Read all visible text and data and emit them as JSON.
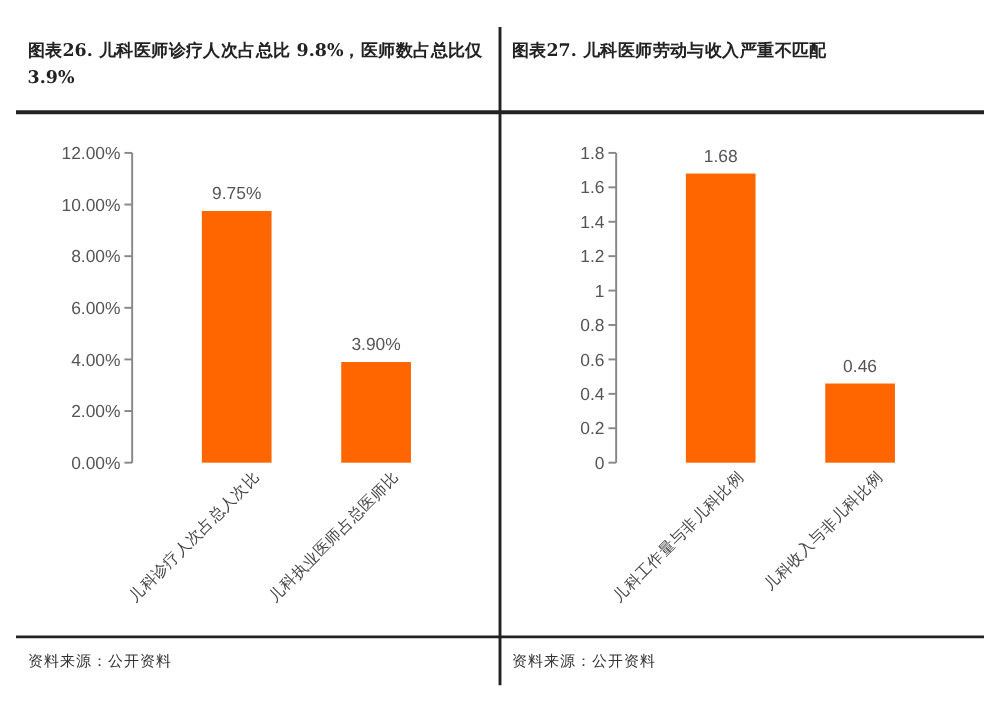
{
  "chart_data": [
    {
      "type": "bar",
      "title": "图表26.  儿科医师诊疗人次占总比 9.8%，医师数占总比仅 3.9%",
      "categories": [
        "儿科诊疗人次占总人次比",
        "儿科执业医师占总医师比"
      ],
      "values": [
        9.75,
        3.9
      ],
      "value_labels": [
        "9.75%",
        "3.90%"
      ],
      "color": "#ff6600",
      "ylim": [
        0,
        12
      ],
      "yticks": [
        {
          "value": 0,
          "label": "0.00%"
        },
        {
          "value": 2,
          "label": "2.00%"
        },
        {
          "value": 4,
          "label": "4.00%"
        },
        {
          "value": 6,
          "label": "6.00%"
        },
        {
          "value": 8,
          "label": "8.00%"
        },
        {
          "value": 10,
          "label": "10.00%"
        },
        {
          "value": 12,
          "label": "12.00%"
        }
      ],
      "annotations": [
        "资料来源：公开资料"
      ]
    },
    {
      "type": "bar",
      "title": "图表27.  儿科医师劳动与收入严重不匹配",
      "categories": [
        "儿科工作量与非儿科比例",
        "儿科收入与非儿科比例"
      ],
      "values": [
        1.68,
        0.46
      ],
      "data_labels": true,
      "color": "#ff6600",
      "ylim": [
        0,
        1.8
      ],
      "yticks": [
        0,
        0.2,
        0.4,
        0.6,
        0.8,
        1,
        1.2,
        1.4,
        1.6,
        1.8
      ],
      "annotations": [
        "资料来源：公开资料"
      ]
    }
  ]
}
